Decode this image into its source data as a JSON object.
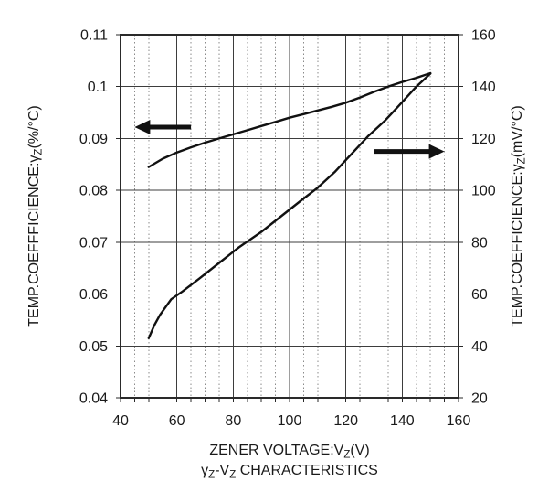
{
  "chart_data": {
    "type": "line",
    "subtitle_segments": [
      {
        "t": "γ"
      },
      {
        "t": "Z",
        "sub": true
      },
      {
        "t": "-V"
      },
      {
        "t": "Z",
        "sub": true
      },
      {
        "t": " CHARACTERISTICS"
      }
    ],
    "x_axis": {
      "label_segments": [
        {
          "t": "ZENER VOLTAGE:V"
        },
        {
          "t": "Z",
          "sub": true
        },
        {
          "t": "(V)"
        }
      ],
      "min": 40,
      "max": 160,
      "major_step": 20,
      "minor_step": 5,
      "tick_labels": [
        "40",
        "60",
        "80",
        "100",
        "120",
        "140",
        "160"
      ]
    },
    "y_left": {
      "label_segments": [
        {
          "t": "TEMP.COEFFFICIENCE:γ"
        },
        {
          "t": "Z",
          "sub": true
        },
        {
          "t": "(%/°C)"
        }
      ],
      "min": 0.04,
      "max": 0.11,
      "step": 0.01,
      "tick_labels": [
        "0.11",
        "0.1",
        "0.09",
        "0.08",
        "0.07",
        "0.06",
        "0.05",
        "0.04"
      ]
    },
    "y_right": {
      "label_segments": [
        {
          "t": "TEMP.COEFFICIENCE:γ"
        },
        {
          "t": "Z",
          "sub": true
        },
        {
          "t": "(mV/°C)"
        }
      ],
      "min": 20,
      "max": 160,
      "step": 20,
      "tick_labels": [
        "160",
        "140",
        "120",
        "100",
        "80",
        "60",
        "40",
        "20"
      ]
    },
    "grid": {
      "major_vertical": true,
      "major_horizontal": true,
      "minor_vertical_dotted": true,
      "minor_horizontal": false
    },
    "series": [
      {
        "name": "temp-coefficient-percent-per-C",
        "axis": "left",
        "x": [
          50,
          55,
          60,
          65,
          70,
          75,
          80,
          85,
          90,
          95,
          100,
          105,
          110,
          115,
          120,
          125,
          130,
          135,
          140,
          145,
          150
        ],
        "y": [
          0.0845,
          0.0861,
          0.0873,
          0.0883,
          0.0892,
          0.09,
          0.0908,
          0.0916,
          0.0924,
          0.0932,
          0.094,
          0.0947,
          0.0954,
          0.0961,
          0.0969,
          0.0979,
          0.099,
          0.1,
          0.1009,
          0.1017,
          0.1026
        ]
      },
      {
        "name": "temp-coefficient-mV-per-C",
        "axis": "right",
        "x": [
          50,
          52,
          54,
          56,
          58,
          62,
          68,
          75,
          82,
          90,
          97,
          104,
          110,
          116,
          122,
          128,
          134,
          140,
          145,
          150
        ],
        "y": [
          43,
          48,
          52,
          55,
          58,
          61,
          66,
          72,
          78,
          84,
          90,
          96,
          101,
          107,
          114,
          121,
          127,
          134,
          140,
          145
        ]
      }
    ],
    "annotations": [
      {
        "type": "arrow",
        "direction": "left",
        "axis": "left",
        "x_from": 65,
        "x_to": 45,
        "y": 0.0922
      },
      {
        "type": "arrow",
        "direction": "right",
        "axis": "right",
        "x_from": 130,
        "x_to": 155,
        "y": 115
      }
    ],
    "colors": {
      "background": "#ffffff",
      "curve": "#111111",
      "frame": "#2a2a2a",
      "grid_major": "#3d3d3d",
      "grid_minor": "#8a8a8a",
      "text": "#1a1a1a"
    }
  }
}
